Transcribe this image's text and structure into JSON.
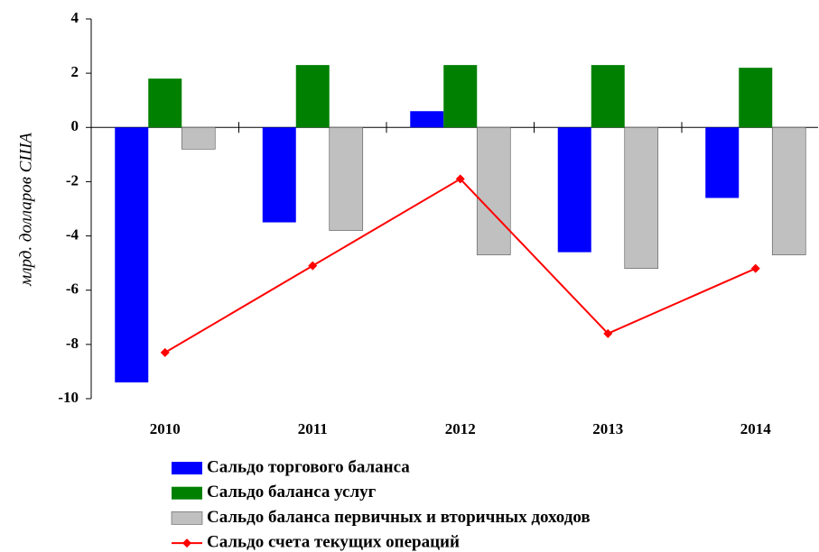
{
  "chart_data": {
    "type": "bar",
    "y_label": "млрд. долларов США",
    "categories": [
      "2010",
      "2011",
      "2012",
      "2013",
      "2014"
    ],
    "series": [
      {
        "name": "Сальдо торгового баланса",
        "color": "#0000ff",
        "type": "bar",
        "values": [
          -9.4,
          -3.5,
          0.6,
          -4.6,
          -2.6
        ]
      },
      {
        "name": "Сальдо баланса услуг",
        "color": "#008000",
        "type": "bar",
        "values": [
          1.8,
          2.3,
          2.3,
          2.3,
          2.2
        ]
      },
      {
        "name": "Сальдо баланса первичных и вторичных доходов",
        "color": "#c0c0c0",
        "type": "bar",
        "values": [
          -0.8,
          -3.8,
          -4.7,
          -5.2,
          -4.7
        ]
      },
      {
        "name": "Сальдо счета текущих операций",
        "color": "#ff0000",
        "type": "line",
        "values": [
          -8.3,
          -5.1,
          -1.9,
          -7.6,
          -5.2
        ]
      }
    ],
    "ylim": [
      -10,
      4
    ],
    "yticks": [
      -10,
      -8,
      -6,
      -4,
      -2,
      0,
      2,
      4
    ],
    "grid": false
  }
}
